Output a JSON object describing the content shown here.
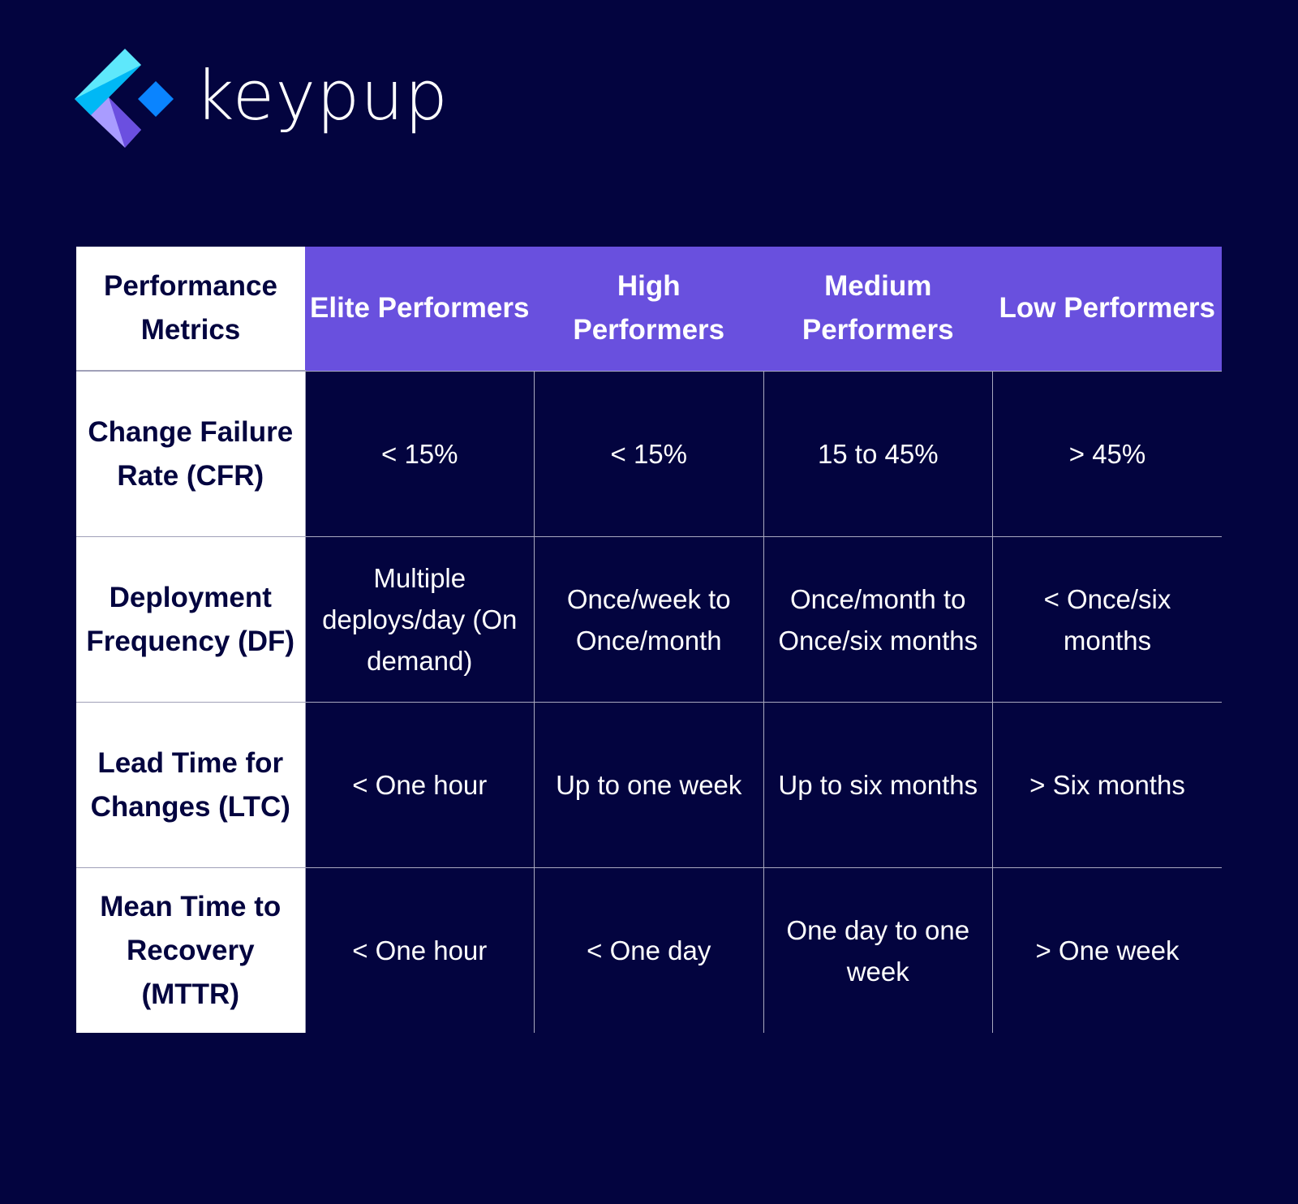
{
  "brand": {
    "name": "keypup",
    "colors": {
      "background": "#03043f",
      "header_accent": "#6950de"
    }
  },
  "table": {
    "corner_header": "Performance Metrics",
    "columns": [
      "Elite Performers",
      "High Performers",
      "Medium Performers",
      "Low Performers"
    ],
    "rows": [
      {
        "metric": "Change Failure Rate (CFR)",
        "values": [
          "< 15%",
          "< 15%",
          "15 to 45%",
          "> 45%"
        ]
      },
      {
        "metric": "Deployment Frequency (DF)",
        "values": [
          "Multiple deploys/day (On demand)",
          "Once/week to Once/month",
          "Once/month to Once/six months",
          "< Once/six months"
        ]
      },
      {
        "metric": "Lead Time for Changes (LTC)",
        "values": [
          "< One hour",
          "Up to one week",
          "Up to six months",
          "> Six months"
        ]
      },
      {
        "metric": "Mean Time to Recovery (MTTR)",
        "values": [
          "< One hour",
          "< One day",
          "One day to one week",
          "> One week"
        ]
      }
    ]
  }
}
